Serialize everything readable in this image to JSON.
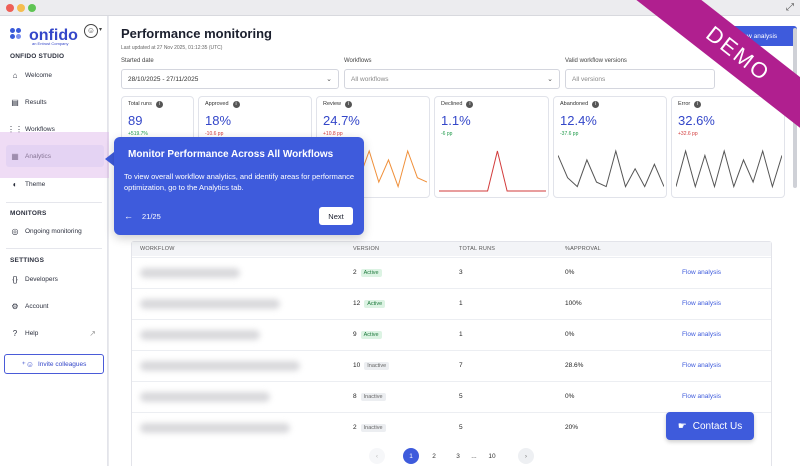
{
  "brand": {
    "name": "onfido",
    "tagline": "an Entrust Company"
  },
  "sidebar": {
    "studio_label": "ONFIDO STUDIO",
    "monitors_label": "MONITORS",
    "settings_label": "SETTINGS",
    "items": {
      "welcome": "Welcome",
      "results": "Results",
      "workflows": "Workflows",
      "analytics": "Analytics",
      "theme": "Theme",
      "ongoing": "Ongoing monitoring",
      "developers": "Developers",
      "account": "Account",
      "help": "Help"
    },
    "invite": "Invite colleagues"
  },
  "header": {
    "title": "Performance monitoring",
    "updated": "Last updated at 27 Nov 2025, 01:12:35 (UTC)",
    "new_button": "New analysis"
  },
  "filters": {
    "date_label": "Started date",
    "date_value": "28/10/2025 - 27/11/2025",
    "workflows_label": "Workflows",
    "workflows_value": "All workflows",
    "versions_label": "Valid workflow versions",
    "versions_value": "All versions"
  },
  "metrics": [
    {
      "label": "Total runs",
      "value": "89",
      "delta": "+519.7%",
      "delta_color": "#1f9a4a",
      "spark_color": "#3e5bdc",
      "series": [
        2,
        3,
        2,
        4,
        3,
        2,
        5,
        3,
        2,
        4,
        3,
        2
      ]
    },
    {
      "label": "Approved",
      "value": "18%",
      "delta": "-10.6 pp",
      "delta_color": "#d23b3b",
      "spark_color": "#3e5bdc",
      "series": [
        1,
        2,
        1,
        3,
        2,
        1,
        2,
        1,
        2,
        3,
        1,
        2
      ]
    },
    {
      "label": "Review",
      "value": "24.7%",
      "delta": "+10.8 pp",
      "delta_color": "#d23b3b",
      "spark_color": "#f0903a",
      "series": [
        1,
        5,
        2,
        8,
        3,
        9,
        2,
        7,
        1,
        9,
        3,
        2
      ]
    },
    {
      "label": "Declined",
      "value": "1.1%",
      "delta": "-6 pp",
      "delta_color": "#1f9a4a",
      "spark_color": "#d23b3b",
      "series": [
        0,
        0,
        0,
        0,
        0,
        0,
        2,
        0,
        0,
        0,
        0,
        0
      ]
    },
    {
      "label": "Abandoned",
      "value": "12.4%",
      "delta": "-37.6 pp",
      "delta_color": "#1f9a4a",
      "spark_color": "#555555",
      "series": [
        8,
        3,
        1,
        7,
        2,
        1,
        9,
        1,
        5,
        1,
        6,
        1
      ]
    },
    {
      "label": "Error",
      "value": "32.6%",
      "delta": "+32.6 pp",
      "delta_color": "#d23b3b",
      "spark_color": "#555555",
      "series": [
        1,
        9,
        1,
        8,
        1,
        9,
        1,
        7,
        2,
        9,
        1,
        8
      ]
    }
  ],
  "table": {
    "headers": [
      "WORKFLOW",
      "VERSION",
      "TOTAL RUNS",
      "%APPROVAL"
    ],
    "rows": [
      {
        "version": "2",
        "status": "Active",
        "runs": "3",
        "approval": "0%",
        "link": "Flow analysis"
      },
      {
        "version": "12",
        "status": "Active",
        "runs": "1",
        "approval": "100%",
        "link": "Flow analysis"
      },
      {
        "version": "9",
        "status": "Active",
        "runs": "1",
        "approval": "0%",
        "link": "Flow analysis"
      },
      {
        "version": "10",
        "status": "Inactive",
        "runs": "7",
        "approval": "28.6%",
        "link": "Flow analysis"
      },
      {
        "version": "8",
        "status": "Inactive",
        "runs": "5",
        "approval": "0%",
        "link": "Flow analysis"
      },
      {
        "version": "2",
        "status": "Inactive",
        "runs": "5",
        "approval": "20%",
        "link": "Flow analysis"
      }
    ]
  },
  "pagination": {
    "pages": [
      "1",
      "2",
      "3",
      "...",
      "10"
    ],
    "current": "1",
    "prev": "‹",
    "next": "›"
  },
  "contact": "Contact Us",
  "tour": {
    "title": "Monitor Performance Across All Workflows",
    "text": "To view overall workflow analytics, and identify areas for performance optimization, go to the Analytics tab.",
    "step": "21/25",
    "next": "Next"
  },
  "ribbon": "DEMO"
}
